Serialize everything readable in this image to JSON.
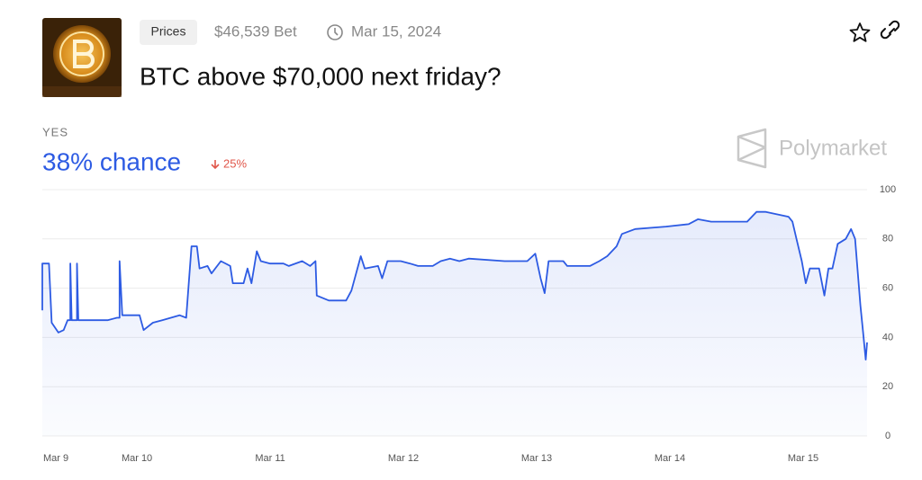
{
  "header": {
    "tag": "Prices",
    "volume": "$46,539 Bet",
    "date": "Mar 15, 2024",
    "title": "BTC above $70,000 next friday?"
  },
  "chart_data": {
    "type": "line",
    "headline": "38% chance",
    "change": "25%",
    "brand": "Polymarket",
    "x": [
      9.29,
      9.29,
      9.34,
      9.36,
      9.41,
      9.45,
      9.48,
      9.5,
      9.5,
      9.51,
      9.55,
      9.55,
      9.56,
      9.78,
      9.85,
      9.87,
      9.87,
      9.89,
      10.02,
      10.05,
      10.12,
      10.19,
      10.32,
      10.37,
      10.41,
      10.45,
      10.47,
      10.53,
      10.56,
      10.63,
      10.7,
      10.72,
      10.8,
      10.83,
      10.86,
      10.9,
      10.93,
      11.0,
      11.1,
      11.14,
      11.24,
      11.3,
      11.34,
      11.35,
      11.44,
      11.57,
      11.61,
      11.68,
      11.71,
      11.81,
      11.84,
      11.88,
      11.98,
      12.05,
      12.11,
      12.22,
      12.28,
      12.35,
      12.42,
      12.49,
      12.76,
      12.93,
      12.99,
      13.03,
      13.06,
      13.09,
      13.2,
      13.23,
      13.3,
      13.4,
      13.47,
      13.53,
      13.6,
      13.64,
      13.74,
      13.97,
      14.14,
      14.21,
      14.31,
      14.58,
      14.65,
      14.72,
      14.89,
      14.92,
      14.95,
      14.99,
      15.02,
      15.05,
      15.12,
      15.16,
      15.19,
      15.22,
      15.26,
      15.32,
      15.36,
      15.39,
      15.43,
      15.45,
      15.47,
      15.48
    ],
    "series": [
      {
        "name": "YES",
        "color": "#2d5be3",
        "values": [
          51,
          70,
          70,
          46,
          42,
          43,
          47,
          47,
          70,
          47,
          47,
          70,
          47,
          47,
          48,
          48,
          71,
          49,
          49,
          43,
          46,
          47,
          49,
          48,
          77,
          77,
          68,
          69,
          66,
          71,
          69,
          62,
          62,
          68,
          62,
          75,
          71,
          70,
          70,
          69,
          71,
          69,
          71,
          57,
          55,
          55,
          59,
          73,
          68,
          69,
          64,
          71,
          71,
          70,
          69,
          69,
          71,
          72,
          71,
          72,
          71,
          71,
          74,
          64,
          58,
          71,
          71,
          69,
          69,
          69,
          71,
          73,
          77,
          82,
          84,
          85,
          86,
          88,
          87,
          87,
          91,
          91,
          89,
          87,
          80,
          71,
          62,
          68,
          68,
          57,
          68,
          68,
          78,
          80,
          84,
          80,
          53,
          42,
          31,
          38
        ]
      }
    ],
    "xlim": [
      9.29,
      15.48
    ],
    "xticks": [
      {
        "value": 9,
        "label": "Mar 9"
      },
      {
        "value": 10,
        "label": "Mar 10"
      },
      {
        "value": 11,
        "label": "Mar 11"
      },
      {
        "value": 12,
        "label": "Mar 12"
      },
      {
        "value": 13,
        "label": "Mar 13"
      },
      {
        "value": 14,
        "label": "Mar 14"
      },
      {
        "value": 15,
        "label": "Mar 15"
      }
    ],
    "ylim": [
      0,
      100
    ],
    "yticks": [
      0,
      20,
      40,
      60,
      80,
      100
    ],
    "grid": true
  }
}
